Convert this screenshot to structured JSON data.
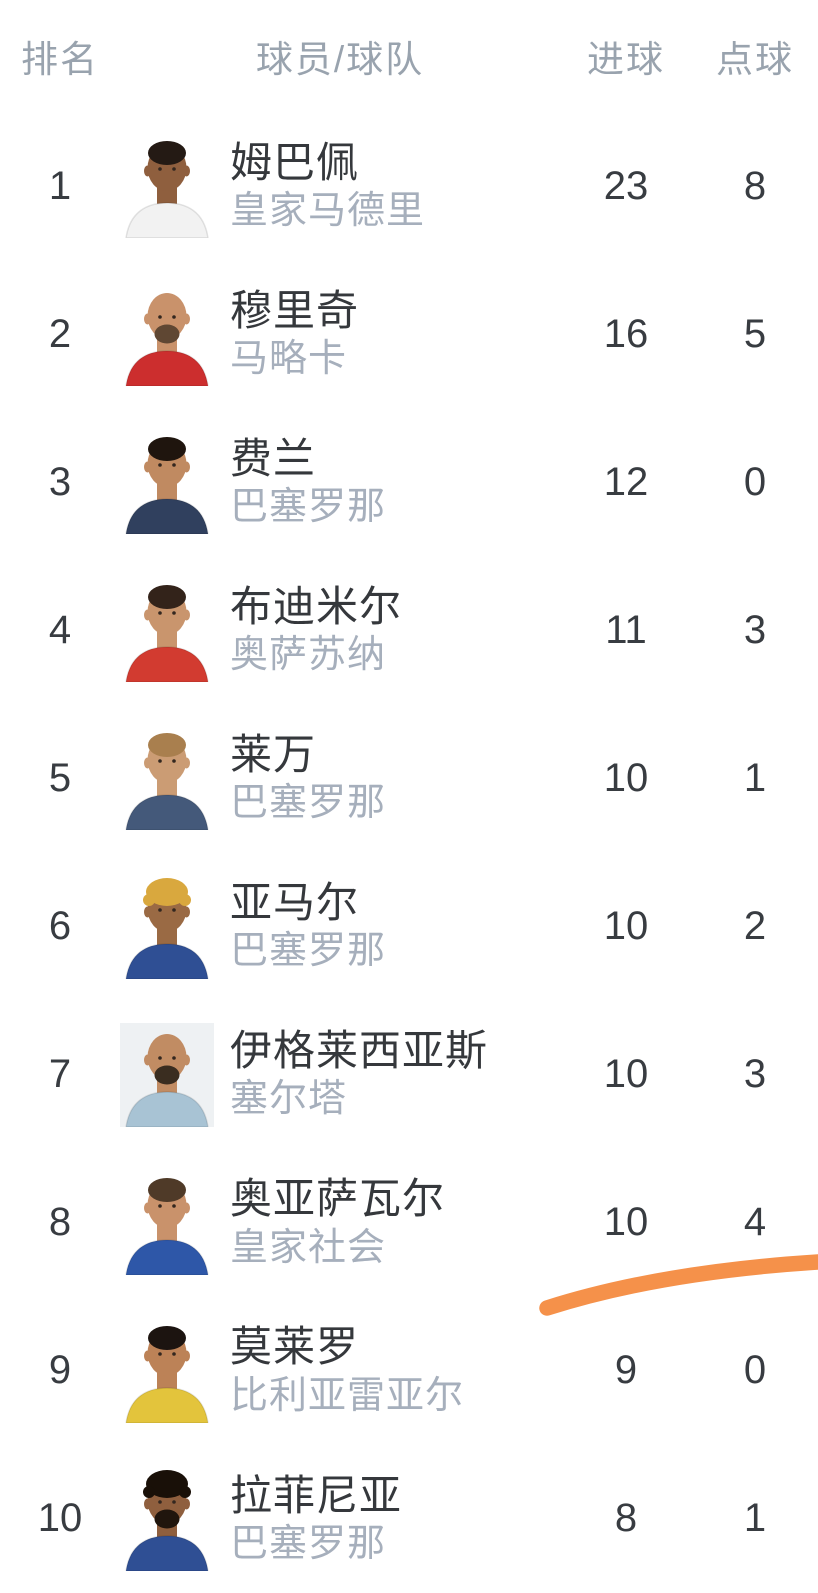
{
  "table": {
    "headers": {
      "rank": "排名",
      "player_team": "球员/球队",
      "goals": "进球",
      "penalties": "点球"
    },
    "rows": [
      {
        "rank": "1",
        "player": "姆巴佩",
        "team": "皇家马德里",
        "goals": "23",
        "penalties": "8",
        "avatar": {
          "bg": "#ffffff",
          "skin": "#8f5f3e",
          "hair": "#241a14",
          "hair_style": "short",
          "beard": "",
          "jersey": "#f2f2f2"
        }
      },
      {
        "rank": "2",
        "player": "穆里奇",
        "team": "马略卡",
        "goals": "16",
        "penalties": "5",
        "avatar": {
          "bg": "#ffffff",
          "skin": "#c9926b",
          "hair": "",
          "hair_style": "bald",
          "beard": "#5f4733",
          "jersey": "#cc2e2e"
        }
      },
      {
        "rank": "3",
        "player": "费兰",
        "team": "巴塞罗那",
        "goals": "12",
        "penalties": "0",
        "avatar": {
          "bg": "#ffffff",
          "skin": "#c08a61",
          "hair": "#1f150e",
          "hair_style": "short",
          "beard": "",
          "jersey": "#30405e"
        }
      },
      {
        "rank": "4",
        "player": "布迪米尔",
        "team": "奥萨苏纳",
        "goals": "11",
        "penalties": "3",
        "avatar": {
          "bg": "#ffffff",
          "skin": "#c9956d",
          "hair": "#33231a",
          "hair_style": "short",
          "beard": "",
          "jersey": "#d23b30"
        }
      },
      {
        "rank": "5",
        "player": "莱万",
        "team": "巴塞罗那",
        "goals": "10",
        "penalties": "1",
        "avatar": {
          "bg": "#ffffff",
          "skin": "#cb9c74",
          "hair": "#a97f4e",
          "hair_style": "short",
          "beard": "",
          "jersey": "#44597a"
        }
      },
      {
        "rank": "6",
        "player": "亚马尔",
        "team": "巴塞罗那",
        "goals": "10",
        "penalties": "2",
        "avatar": {
          "bg": "#ffffff",
          "skin": "#9a6a44",
          "hair": "#d9a83e",
          "hair_style": "curly",
          "beard": "",
          "jersey": "#2f4f94"
        }
      },
      {
        "rank": "7",
        "player": "伊格莱西亚斯",
        "team": "塞尔塔",
        "goals": "10",
        "penalties": "3",
        "avatar": {
          "bg": "#eef1f3",
          "skin": "#c18c63",
          "hair": "",
          "hair_style": "bald",
          "beard": "#3a2d20",
          "jersey": "#a8c3d4"
        }
      },
      {
        "rank": "8",
        "player": "奥亚萨瓦尔",
        "team": "皇家社会",
        "goals": "10",
        "penalties": "4",
        "avatar": {
          "bg": "#ffffff",
          "skin": "#c9926b",
          "hair": "#4f3a28",
          "hair_style": "short",
          "beard": "",
          "jersey": "#2e57a8"
        }
      },
      {
        "rank": "9",
        "player": "莫莱罗",
        "team": "比利亚雷亚尔",
        "goals": "9",
        "penalties": "0",
        "avatar": {
          "bg": "#ffffff",
          "skin": "#bc8257",
          "hair": "#1c1410",
          "hair_style": "short",
          "beard": "",
          "jersey": "#e3c43c"
        }
      },
      {
        "rank": "10",
        "player": "拉菲尼亚",
        "team": "巴塞罗那",
        "goals": "8",
        "penalties": "1",
        "avatar": {
          "bg": "#ffffff",
          "skin": "#8f5f3e",
          "hair": "#191008",
          "hair_style": "curly",
          "beard": "#20150d",
          "jersey": "#2f4f94"
        }
      }
    ]
  },
  "annotation": {
    "swoosh_color": "#f5914a"
  },
  "colors": {
    "header_text": "#99a3ae",
    "dark_text": "#383c41",
    "team_text": "#a6afbc",
    "background": "#ffffff"
  }
}
